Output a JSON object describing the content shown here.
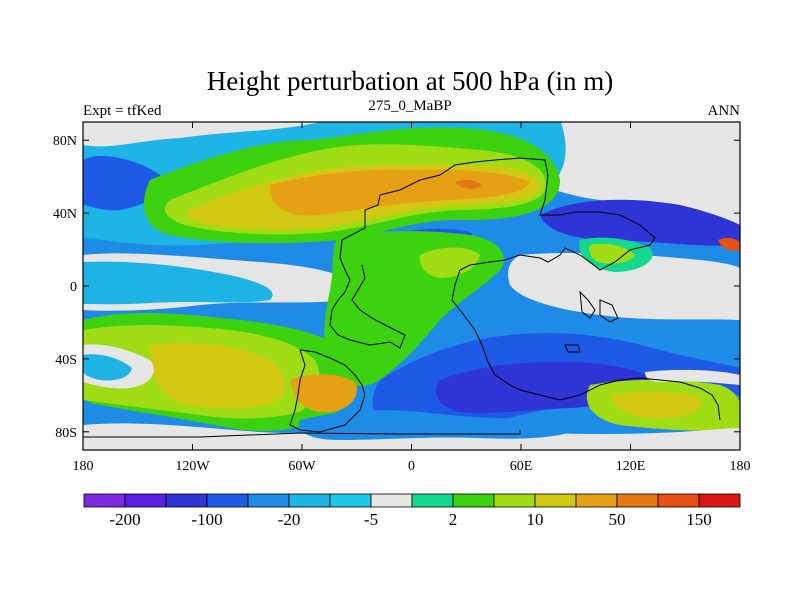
{
  "title": "Height perturbation at 500 hPa (in m)",
  "left_string": "Expt = tfKed",
  "center_string": "275_0_MaBP",
  "right_string": "ANN",
  "map": {
    "lon_ticks": [
      "180",
      "120W",
      "60W",
      "0",
      "60E",
      "120E",
      "180"
    ],
    "lat_ticks": [
      "80N",
      "40N",
      "0",
      "40S",
      "80S"
    ]
  },
  "colorbar": {
    "colors": [
      "#7d2ae0",
      "#5a1ee0",
      "#2f34d6",
      "#1e5ae6",
      "#1e8ce6",
      "#1eb4e6",
      "#1ec8e6",
      "#e6e6e6",
      "#14d890",
      "#3cd210",
      "#a0dc14",
      "#d2c814",
      "#e6a014",
      "#e67814",
      "#e65014",
      "#dc1414"
    ],
    "labels": [
      "-200",
      "-100",
      "-20",
      "-5",
      "2",
      "10",
      "50",
      "150"
    ]
  },
  "colors": {
    "white_band": "#e6e6e6",
    "outline": "#000000"
  }
}
